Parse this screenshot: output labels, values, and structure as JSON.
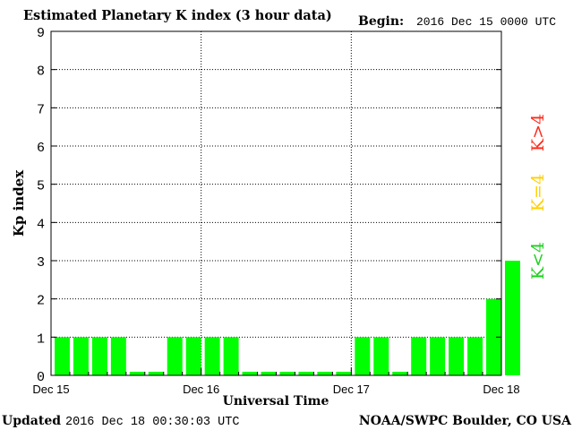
{
  "header": {
    "title": "Estimated Planetary K index (3 hour data)",
    "begin_label": "Begin:",
    "begin_value": "2016 Dec 15 0000 UTC"
  },
  "footer": {
    "updated_label": "Updated",
    "updated_value": "2016 Dec 18 00:30:03 UTC",
    "source": "NOAA/SWPC Boulder, CO USA"
  },
  "legend": {
    "k_greater": "K>4",
    "k_equal": "K=4",
    "k_less": "K<4"
  },
  "colors": {
    "bar": "#00ff00",
    "k_greater": "#ff2a1a",
    "k_equal": "#ffd000",
    "k_less": "#1ed01e"
  },
  "chart_data": {
    "type": "bar",
    "title": "Estimated Planetary K index (3 hour data)",
    "xlabel": "Universal Time",
    "ylabel": "Kp index",
    "ylim": [
      0,
      9
    ],
    "yticks": [
      "0",
      "1",
      "2",
      "3",
      "4",
      "5",
      "6",
      "7",
      "8",
      "9"
    ],
    "xticks": [
      "Dec 15",
      "Dec 16",
      "Dec 17",
      "Dec 18"
    ],
    "interval_hours": 3,
    "grid": true,
    "values": [
      1,
      1,
      1,
      1,
      0,
      0,
      1,
      1,
      1,
      1,
      0,
      0,
      0,
      0,
      0,
      0,
      1,
      1,
      0,
      1,
      1,
      1,
      1,
      2,
      3
    ]
  }
}
